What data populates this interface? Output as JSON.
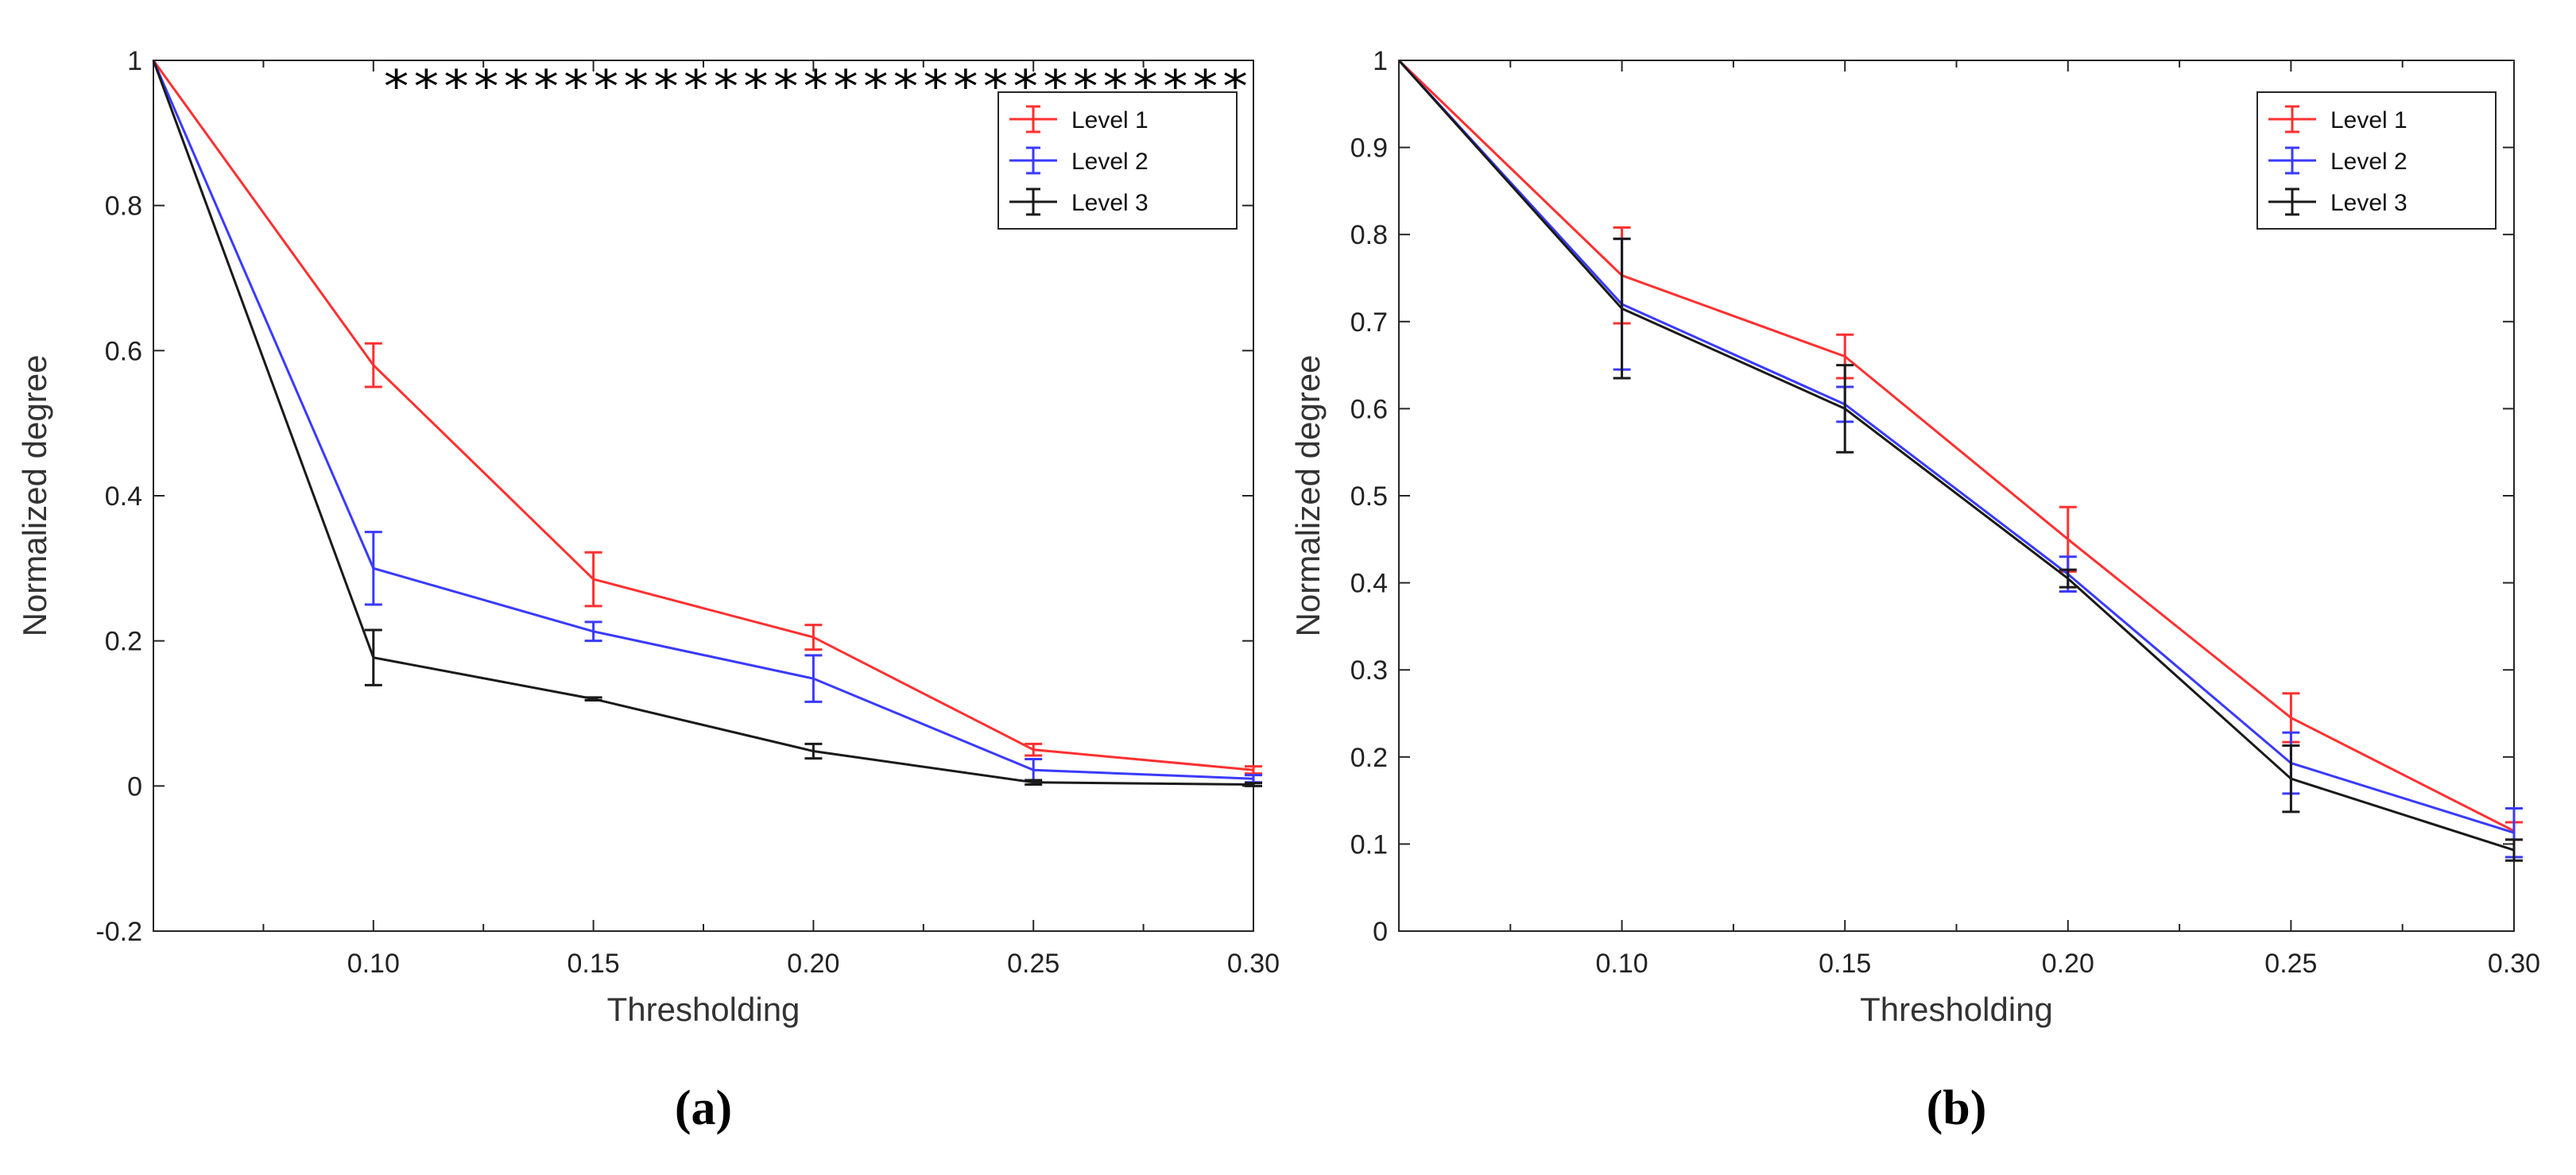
{
  "chart_data": [
    {
      "type": "line",
      "panel_label": "(a)",
      "xlabel": "Thresholding",
      "ylabel": "Normalized degree",
      "xlim": [
        0.05,
        0.3
      ],
      "ylim": [
        -0.2,
        1
      ],
      "x_tick_values": [
        0.1,
        0.15,
        0.2,
        0.25,
        0.3
      ],
      "x_tick_labels": [
        "0.10",
        "0.15",
        "0.20",
        "0.25",
        "0.30"
      ],
      "y_tick_values": [
        -0.2,
        0,
        0.2,
        0.4,
        0.6,
        0.8,
        1
      ],
      "y_tick_labels": [
        "-0.2",
        "0",
        "0.2",
        "0.4",
        "0.6",
        "0.8",
        "1"
      ],
      "legend_position": "top-right",
      "significance_marker": "*****************************",
      "x": [
        0.05,
        0.1,
        0.15,
        0.2,
        0.25,
        0.3
      ],
      "series": [
        {
          "name": "Level 1",
          "color": "#ff3030",
          "values": [
            1.0,
            0.58,
            0.285,
            0.205,
            0.05,
            0.022
          ],
          "errors": [
            0,
            0.03,
            0.037,
            0.017,
            0.008,
            0.005
          ]
        },
        {
          "name": "Level 2",
          "color": "#3a3aff",
          "values": [
            1.0,
            0.3,
            0.213,
            0.148,
            0.022,
            0.01
          ],
          "errors": [
            0,
            0.05,
            0.013,
            0.032,
            0.015,
            0.005
          ]
        },
        {
          "name": "Level 3",
          "color": "#1a1a1a",
          "values": [
            1.0,
            0.177,
            0.12,
            0.048,
            0.005,
            0.002
          ],
          "errors": [
            0,
            0.038,
            0.002,
            0.01,
            0.003,
            0.002
          ]
        }
      ]
    },
    {
      "type": "line",
      "panel_label": "(b)",
      "xlabel": "Thresholding",
      "ylabel": "Normalized degree",
      "xlim": [
        0.05,
        0.3
      ],
      "ylim": [
        0,
        1
      ],
      "x_tick_values": [
        0.1,
        0.15,
        0.2,
        0.25,
        0.3
      ],
      "x_tick_labels": [
        "0.10",
        "0.15",
        "0.20",
        "0.25",
        "0.30"
      ],
      "y_tick_values": [
        0,
        0.1,
        0.2,
        0.3,
        0.4,
        0.5,
        0.6,
        0.7,
        0.8,
        0.9,
        1
      ],
      "y_tick_labels": [
        "0",
        "0.1",
        "0.2",
        "0.3",
        "0.4",
        "0.5",
        "0.6",
        "0.7",
        "0.8",
        "0.9",
        "1"
      ],
      "legend_position": "top-right",
      "x": [
        0.05,
        0.1,
        0.15,
        0.2,
        0.25,
        0.3
      ],
      "series": [
        {
          "name": "Level 1",
          "color": "#ff3030",
          "values": [
            1.0,
            0.753,
            0.66,
            0.45,
            0.245,
            0.115
          ],
          "errors": [
            0,
            0.055,
            0.025,
            0.037,
            0.028,
            0.01
          ]
        },
        {
          "name": "Level 2",
          "color": "#3a3aff",
          "values": [
            1.0,
            0.72,
            0.605,
            0.41,
            0.193,
            0.113
          ],
          "errors": [
            0,
            0.075,
            0.02,
            0.02,
            0.035,
            0.028
          ]
        },
        {
          "name": "Level 3",
          "color": "#1a1a1a",
          "values": [
            1.0,
            0.715,
            0.6,
            0.405,
            0.175,
            0.093
          ],
          "errors": [
            0,
            0.08,
            0.05,
            0.01,
            0.038,
            0.012
          ]
        }
      ]
    }
  ]
}
